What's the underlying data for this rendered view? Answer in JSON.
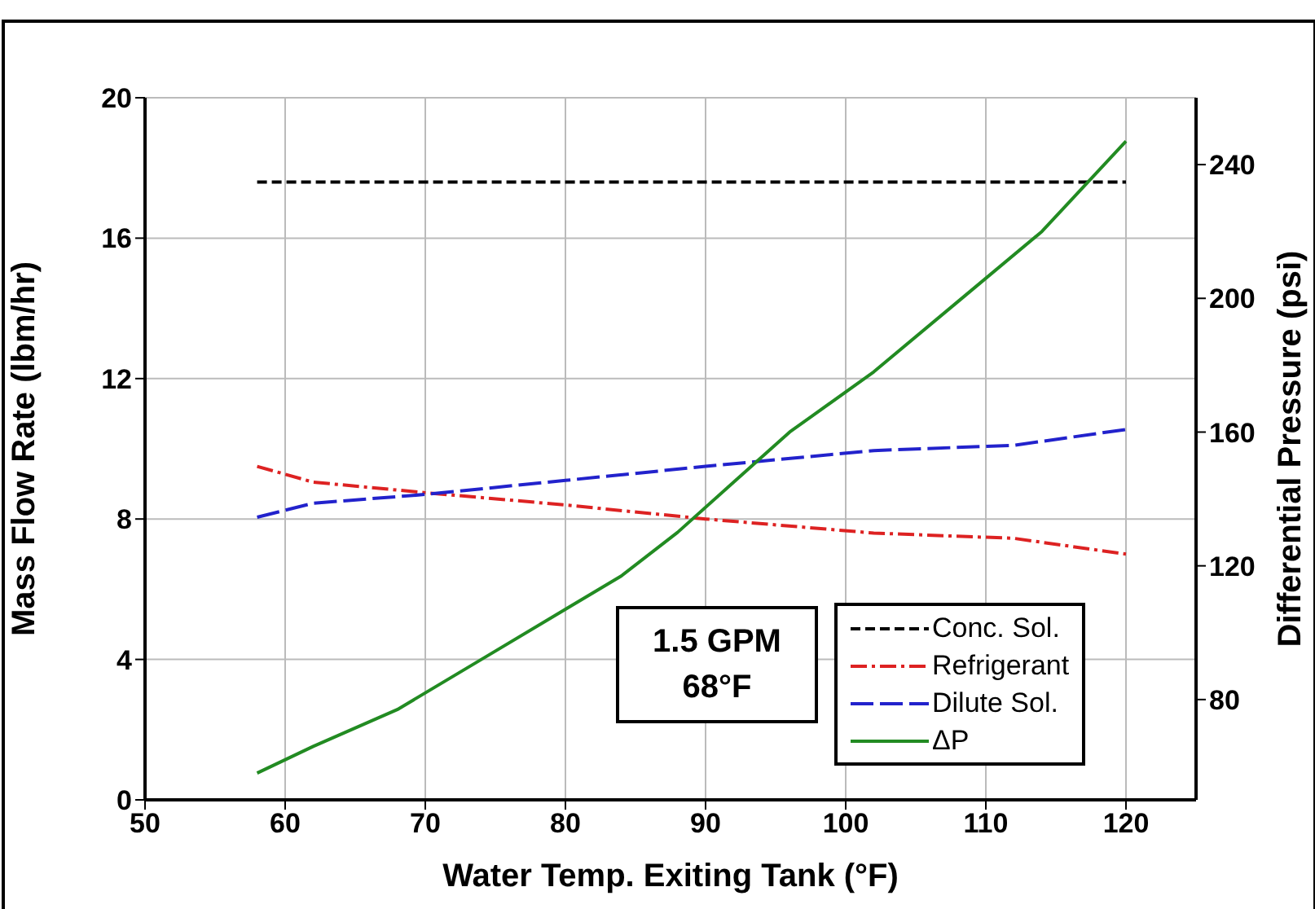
{
  "chart_data": {
    "type": "line",
    "xlabel": "Water Temp. Exiting Tank (°F)",
    "ylabel": "Mass Flow Rate (lbm/hr)",
    "y2label": "Differential Pressure (psi)",
    "xlim": [
      50,
      125
    ],
    "xticks": [
      50,
      60,
      70,
      80,
      90,
      100,
      110,
      120
    ],
    "ylim": [
      0,
      20
    ],
    "yticks": [
      0,
      4,
      8,
      12,
      16,
      20
    ],
    "y2lim": [
      50,
      260
    ],
    "y2ticks": [
      80,
      120,
      160,
      200,
      240
    ],
    "grid": true,
    "legend": "bottom right",
    "marker": "none",
    "annotations": [
      "1.5 GPM\n68°F"
    ],
    "series": [
      {
        "name": "Conc. Sol.",
        "color": "#000000",
        "line_style": "dashed",
        "x": [
          58,
          120
        ],
        "values": [
          17.6,
          17.6
        ]
      },
      {
        "name": "Refrigerant",
        "color": "#dd2222",
        "line_style": "dashed",
        "x": [
          58,
          62,
          70,
          80,
          90,
          102,
          112,
          120
        ],
        "values": [
          9.5,
          9.05,
          8.75,
          8.4,
          8.0,
          7.6,
          7.45,
          7.0
        ]
      },
      {
        "name": "Dilute Sol.",
        "color": "#2222cc",
        "line_style": "dashed",
        "x": [
          58,
          62,
          70,
          80,
          90,
          102,
          112,
          120
        ],
        "values": [
          8.05,
          8.45,
          8.7,
          9.1,
          9.5,
          9.95,
          10.1,
          10.55
        ]
      },
      {
        "name": "ΔP",
        "color": "#228b22",
        "line_style": "solid",
        "axis": "y2",
        "x": [
          58,
          62,
          68,
          74,
          80,
          84,
          88,
          92,
          96,
          102,
          108,
          114,
          120
        ],
        "values": [
          58,
          66,
          77,
          92,
          107,
          117,
          130,
          145,
          160,
          178,
          199,
          220,
          247
        ]
      }
    ]
  }
}
